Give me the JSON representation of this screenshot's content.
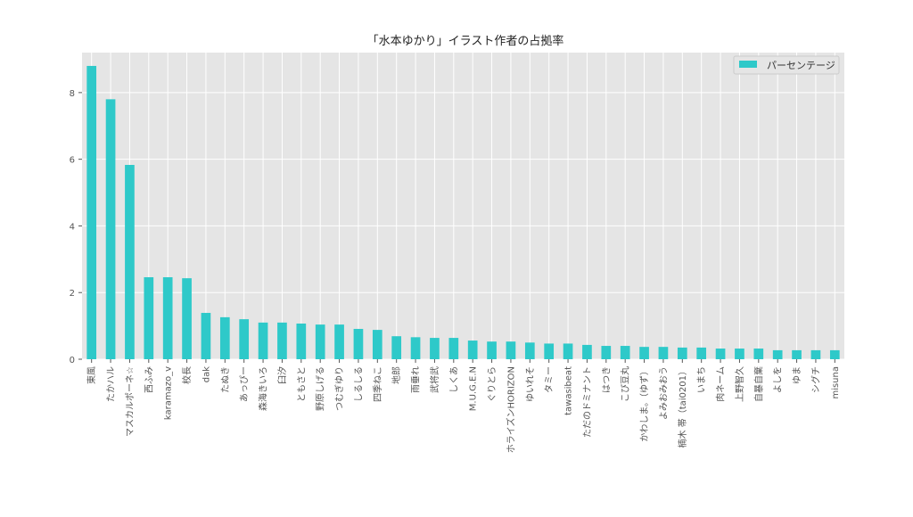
{
  "chart_data": {
    "type": "bar",
    "title": "「水本ゆかり」イラスト作者の占拠率",
    "xlabel": "",
    "ylabel": "",
    "ylim": [
      0,
      9.2
    ],
    "yticks": [
      0,
      2,
      4,
      6,
      8
    ],
    "grid": true,
    "legend_position": "top-right",
    "bar_color": "#2ec9c9",
    "plot_bg": "#e5e5e5",
    "categories": [
      "東風",
      "たかハル",
      "マスカルポーネ☆",
      "西ふみ",
      "karamazo_v",
      "校長",
      "dak",
      "たぬき",
      "あっぴー",
      "森海きいろ",
      "臼汐",
      "ともさと",
      "野原しげる",
      "つむぎゆり",
      "しるしる",
      "四季ねこ",
      "地郎",
      "雨垂れ",
      "武将武",
      "しくあ",
      "M.U.G.E.N",
      "ぐりとら",
      "ホライズンHORIZON",
      "ゆいれそ",
      "タミー",
      "tawasibeat",
      "ただのドミナント",
      "はつき",
      "こび豆丸",
      "かわしま。（ゆず）",
      "よみおみおう",
      "楠木 帯（tai0201）",
      "いまち",
      "肉ネーム",
      "上野智久",
      "自暴自棄",
      "よしを",
      "ゆま",
      "シグチ",
      "misuna"
    ],
    "series": [
      {
        "name": "パーセンテージ",
        "values": [
          8.8,
          7.8,
          5.83,
          2.46,
          2.46,
          2.43,
          1.39,
          1.26,
          1.2,
          1.1,
          1.1,
          1.07,
          1.04,
          1.04,
          0.91,
          0.88,
          0.69,
          0.66,
          0.64,
          0.64,
          0.56,
          0.53,
          0.53,
          0.5,
          0.47,
          0.47,
          0.43,
          0.4,
          0.4,
          0.37,
          0.37,
          0.35,
          0.35,
          0.32,
          0.32,
          0.32,
          0.27,
          0.27,
          0.27,
          0.27
        ]
      }
    ]
  }
}
